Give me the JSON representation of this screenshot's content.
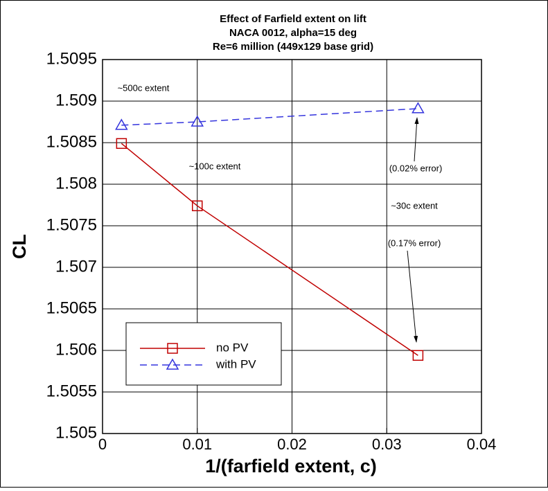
{
  "chart_data": {
    "type": "line",
    "title": [
      "Effect of Farfield extent on lift",
      "NACA 0012, alpha=15 deg",
      "Re=6 million (449x129 base grid)"
    ],
    "x_label": "1/(farfield extent, c)",
    "y_label": "CL",
    "series": [
      {
        "name": "no PV",
        "color": "#c00000",
        "dash": false,
        "marker": "square",
        "x": [
          0.002,
          0.01,
          0.0333
        ],
        "values": [
          1.50849,
          1.50774,
          1.50594
        ]
      },
      {
        "name": "with PV",
        "color": "#3333dd",
        "dash": true,
        "marker": "triangle",
        "x": [
          0.002,
          0.01,
          0.0333
        ],
        "values": [
          1.50871,
          1.50875,
          1.50891
        ]
      }
    ],
    "xlim": [
      0,
      0.04
    ],
    "xticks": [
      0,
      0.01,
      0.02,
      0.03,
      0.04
    ],
    "ylim": [
      1.505,
      1.5095
    ],
    "yticks": [
      1.505,
      1.5055,
      1.506,
      1.5065,
      1.507,
      1.5075,
      1.508,
      1.5085,
      1.509,
      1.5095
    ],
    "grid": true,
    "annotations": [
      "~500c extent",
      "~100c extent",
      "(0.02% error)",
      "~30c extent",
      "(0.17% error)"
    ]
  }
}
